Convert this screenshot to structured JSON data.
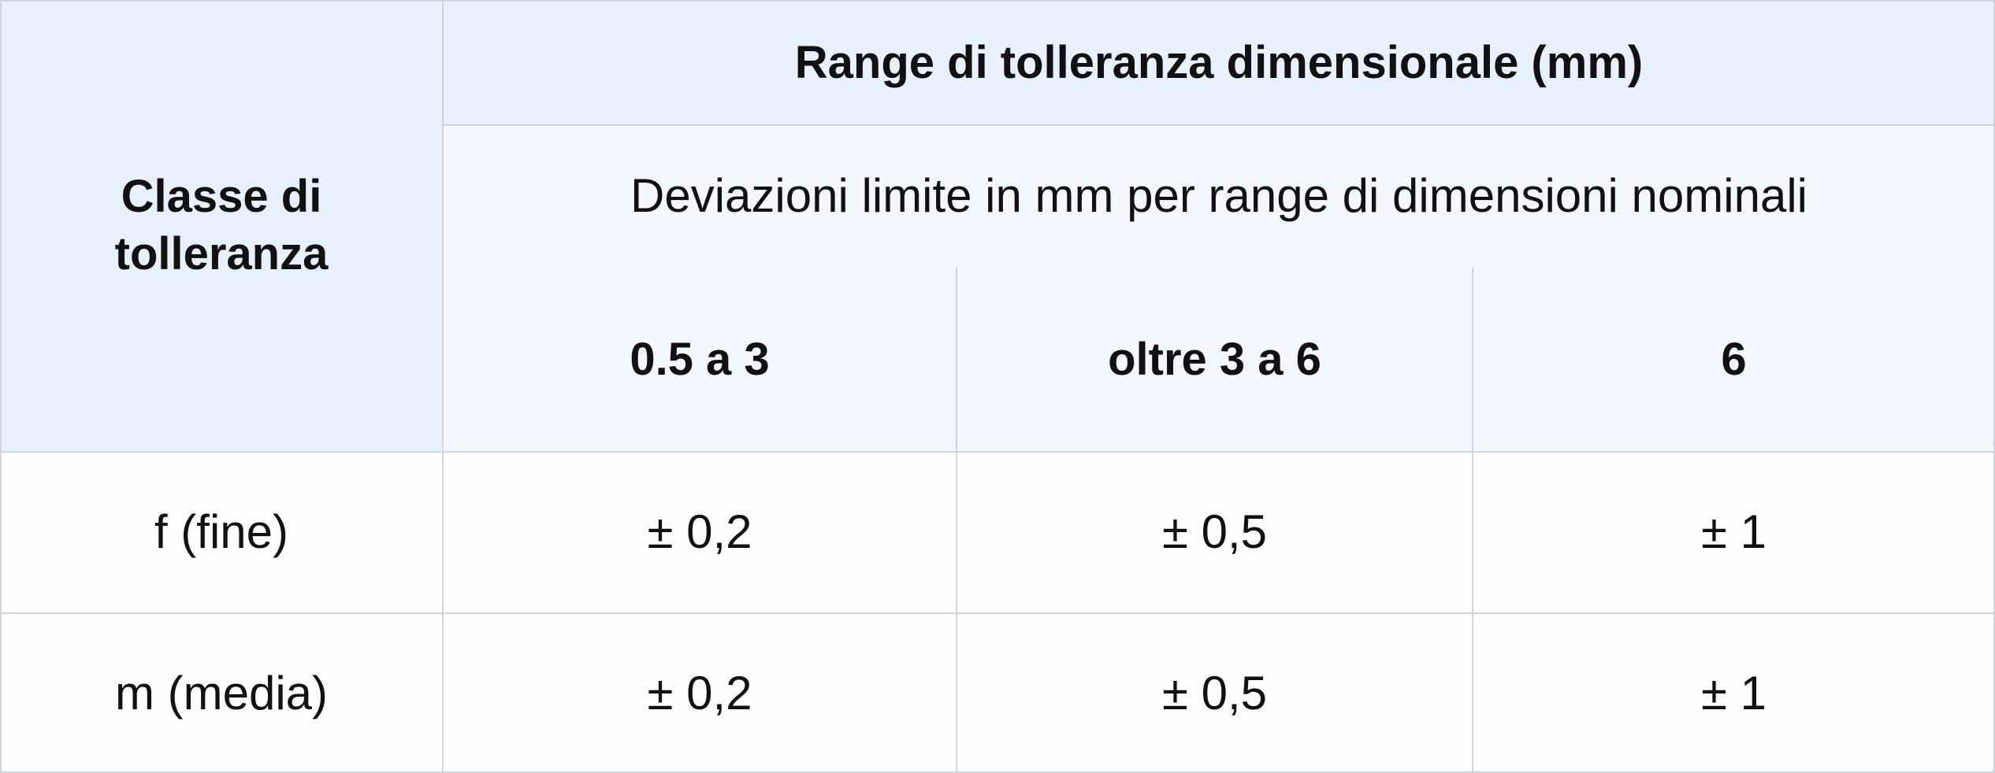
{
  "table": {
    "header": {
      "row_header": "Classe di tolleranza",
      "title": "Range di tolleranza dimensionale (mm)",
      "subtitle": "Deviazioni limite in mm per range di dimensioni nominali",
      "columns": [
        "0.5 a 3",
        "oltre 3 a 6",
        "6"
      ]
    },
    "rows": [
      [
        "f (fine)",
        "± 0,2",
        "± 0,5",
        "± 1"
      ],
      [
        "m (media)",
        "± 0,2",
        "± 0,5",
        "± 1"
      ]
    ]
  }
}
